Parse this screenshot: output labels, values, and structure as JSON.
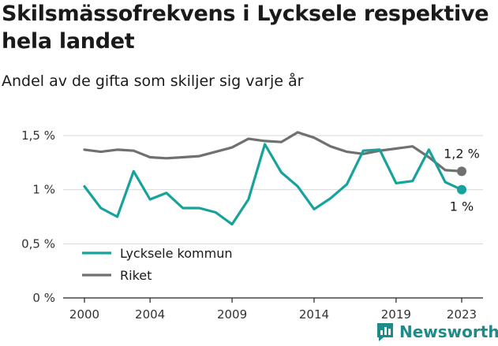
{
  "header": {
    "title": "Skilsmässofrekvens i Lycksele respektive hela landet",
    "subtitle": "Andel av de gifta som skiljer sig varje år"
  },
  "brand": {
    "name": "Newsworthy",
    "icon": "newsworthy-logo-icon",
    "color": "#1f8a8a"
  },
  "chart_data": {
    "type": "line",
    "title": "Skilsmässofrekvens i Lycksele respektive hela landet",
    "subtitle": "Andel av de gifta som skiljer sig varje år",
    "xlabel": "",
    "ylabel": "",
    "x": [
      2000,
      2001,
      2002,
      2003,
      2004,
      2005,
      2006,
      2007,
      2008,
      2009,
      2010,
      2011,
      2012,
      2013,
      2014,
      2015,
      2016,
      2017,
      2018,
      2019,
      2020,
      2021,
      2022,
      2023
    ],
    "xticks": [
      2000,
      2004,
      2009,
      2014,
      2019,
      2023
    ],
    "xtick_labels": [
      "2000",
      "2004",
      "2009",
      "2014",
      "2019",
      "2023"
    ],
    "yticks": [
      0,
      0.5,
      1,
      1.5
    ],
    "ytick_labels": [
      "0 %",
      "0,5 %",
      "1 %",
      "1,5 %"
    ],
    "ylim": [
      0,
      1.5
    ],
    "xlim": [
      2000,
      2023
    ],
    "grid": "horizontal",
    "legend": "bottom-left",
    "series": [
      {
        "name": "Lycksele kommun",
        "color": "#17a39b",
        "end_label": "1 %",
        "values": [
          1.03,
          0.83,
          0.75,
          1.17,
          0.91,
          0.97,
          0.83,
          0.83,
          0.79,
          0.68,
          0.91,
          1.42,
          1.16,
          1.03,
          0.82,
          0.92,
          1.05,
          1.36,
          1.37,
          1.06,
          1.08,
          1.37,
          1.07,
          1.0
        ]
      },
      {
        "name": "Riket",
        "color": "#707070",
        "end_label": "1,2 %",
        "values": [
          1.37,
          1.35,
          1.37,
          1.36,
          1.3,
          1.29,
          1.3,
          1.31,
          1.35,
          1.39,
          1.47,
          1.45,
          1.44,
          1.53,
          1.48,
          1.4,
          1.35,
          1.33,
          1.36,
          1.38,
          1.4,
          1.3,
          1.18,
          1.17
        ]
      }
    ]
  }
}
